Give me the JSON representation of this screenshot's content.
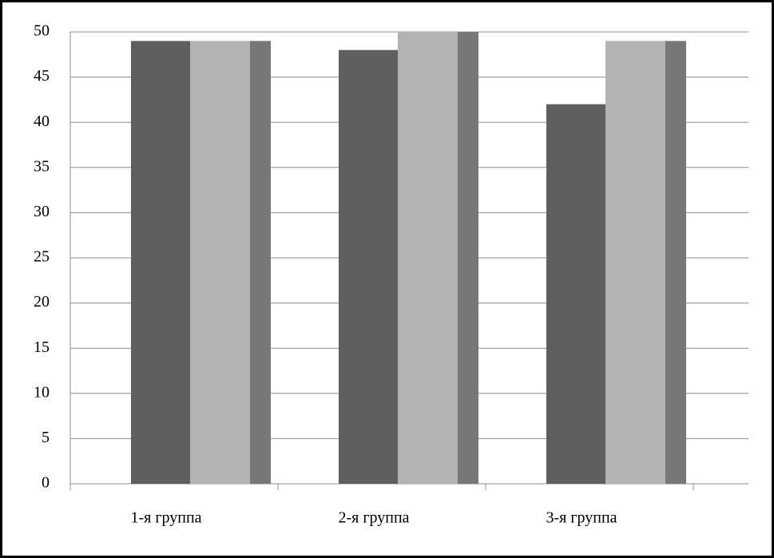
{
  "chart_data": {
    "type": "bar",
    "categories": [
      "1-я группа",
      "2-я группа",
      "3-я группа"
    ],
    "series": [
      {
        "color": "#5f5f5f",
        "values": [
          49,
          48,
          42
        ]
      },
      {
        "color": "#b3b3b3",
        "values": [
          49,
          50,
          49
        ]
      },
      {
        "color": "#777777",
        "values": [
          49,
          50,
          49
        ]
      }
    ],
    "ylim": [
      0,
      50
    ],
    "yticks": [
      0,
      5,
      10,
      15,
      20,
      25,
      30,
      35,
      40,
      45,
      50
    ],
    "grid": true
  }
}
